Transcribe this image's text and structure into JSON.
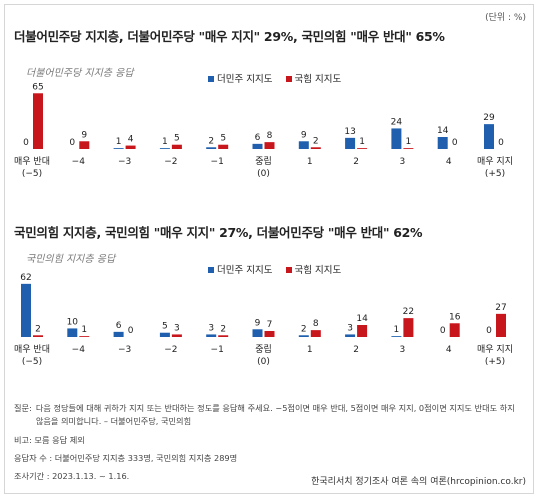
{
  "unit_label": "(단위 : %)",
  "legend": [
    {
      "name": "더민주 지지도",
      "color": "#1f5fae"
    },
    {
      "name": "국힘 지지도",
      "color": "#c8161d"
    }
  ],
  "chart_data": [
    {
      "type": "bar",
      "title": "더불어민주당 지지층, 더불어민주당 \"매우 지지\" 29%, 국민의힘 \"매우 반대\" 65%",
      "subtitle": "더불어민주당 지지층 응답",
      "categories": [
        "매우 반대\n(−5)",
        "−4",
        "−3",
        "−2",
        "−1",
        "중립\n(0)",
        "1",
        "2",
        "3",
        "4",
        "매우 지지\n(+5)"
      ],
      "series": [
        {
          "name": "더민주 지지도",
          "color": "#1f5fae",
          "values": [
            0,
            0,
            1,
            1,
            2,
            6,
            9,
            13,
            24,
            14,
            29
          ]
        },
        {
          "name": "국힘 지지도",
          "color": "#c8161d",
          "values": [
            65,
            9,
            4,
            5,
            5,
            8,
            2,
            1,
            1,
            0,
            0
          ]
        }
      ],
      "ylim": [
        0,
        70
      ]
    },
    {
      "type": "bar",
      "title": "국민의힘 지지층, 국민의힘 \"매우 지지\" 27%, 더불어민주당 \"매우 반대\" 62%",
      "subtitle": "국민의힘 지지층 응답",
      "categories": [
        "매우 반대\n(−5)",
        "−4",
        "−3",
        "−2",
        "−1",
        "중립\n(0)",
        "1",
        "2",
        "3",
        "4",
        "매우 지지\n(+5)"
      ],
      "series": [
        {
          "name": "더민주 지지도",
          "color": "#1f5fae",
          "values": [
            62,
            10,
            6,
            5,
            3,
            9,
            2,
            3,
            1,
            0,
            0
          ]
        },
        {
          "name": "국힘 지지도",
          "color": "#c8161d",
          "values": [
            2,
            1,
            0,
            3,
            2,
            7,
            8,
            14,
            22,
            16,
            27
          ]
        }
      ],
      "ylim": [
        0,
        70
      ]
    }
  ],
  "notes": {
    "question_label": "질문:",
    "question_text": "다음 정당들에 대해 귀하가 지지 또는 반대하는 정도를 응답해 주세요. −5점이면 매우 반대, 5점이면 매우 지지, 0점이면 지지도 반대도 하지 않음을 의미합니다. – 더불어민주당, 국민의힘",
    "base": "비고: 모름 응답 제외",
    "sample": "응답자 수 : 더불어민주당 지지층 333명, 국민의힘 지지층 289명",
    "period": "조사기간 : 2023.1.13. ~ 1.16."
  },
  "source": "한국리서치 정기조사 여론 속의 여론(hrcopinion.co.kr)"
}
